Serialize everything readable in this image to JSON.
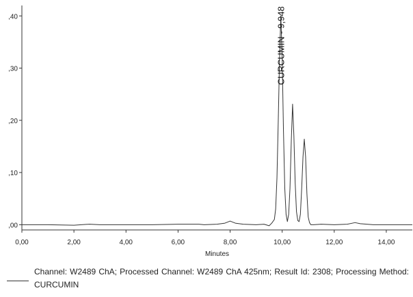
{
  "chart_data": {
    "type": "line",
    "title": "",
    "xlabel": "Minutes",
    "ylabel": "",
    "xlim": [
      0,
      15
    ],
    "ylim": [
      -0.01,
      0.42
    ],
    "x_ticks": [
      0,
      2,
      4,
      6,
      8,
      10,
      12,
      14
    ],
    "x_tick_labels": [
      "0,00",
      "2,00",
      "4,00",
      "6,00",
      "8,00",
      "10,00",
      "12,00",
      "14,00"
    ],
    "y_ticks": [
      0,
      0.1,
      0.2,
      0.3,
      0.4
    ],
    "y_tick_labels": [
      ",00",
      ",10",
      ",20",
      ",30",
      ",40"
    ],
    "grid": false,
    "line_color": "#333333",
    "series": [
      {
        "x": [
          0.0,
          1.0,
          2.0,
          2.6,
          3.0,
          4.0,
          5.0,
          6.0,
          6.8,
          7.0,
          7.5,
          7.8,
          8.0,
          8.2,
          8.5,
          9.0,
          9.3,
          9.5,
          9.6,
          9.7,
          9.75,
          9.8,
          9.85,
          9.9,
          9.948,
          10.0,
          10.05,
          10.1,
          10.15,
          10.2,
          10.25,
          10.3,
          10.35,
          10.4,
          10.45,
          10.5,
          10.55,
          10.6,
          10.65,
          10.7,
          10.75,
          10.8,
          10.85,
          10.9,
          10.95,
          11.0,
          11.05,
          11.1,
          11.2,
          11.5,
          12.0,
          12.5,
          12.8,
          13.0,
          13.5,
          14.0,
          15.0
        ],
        "y": [
          0.0,
          0.0,
          -0.001,
          0.001,
          0.0,
          0.0,
          0.0,
          0.001,
          0.001,
          0.0,
          0.001,
          0.003,
          0.007,
          0.003,
          0.001,
          0.0,
          0.001,
          -0.002,
          0.003,
          0.01,
          0.03,
          0.09,
          0.2,
          0.32,
          0.4,
          0.32,
          0.18,
          0.07,
          0.02,
          0.006,
          0.02,
          0.07,
          0.16,
          0.231,
          0.17,
          0.08,
          0.025,
          0.008,
          0.006,
          0.02,
          0.07,
          0.13,
          0.164,
          0.13,
          0.06,
          0.015,
          0.004,
          0.0,
          0.0,
          0.001,
          0.0,
          0.001,
          0.004,
          0.002,
          0.0,
          0.0,
          0.0
        ]
      }
    ],
    "annotations": [
      {
        "text": "CURCUMIN - 9,948",
        "x": 9.948,
        "y": 0.4,
        "orientation": "vertical"
      }
    ],
    "legend": {
      "position": "bottom",
      "text": "Channel: W2489 ChA;   Processed Channel:  W2489 ChA 425nm;   Result Id:  2308;   Processing Method:  CURCUMIN"
    }
  }
}
